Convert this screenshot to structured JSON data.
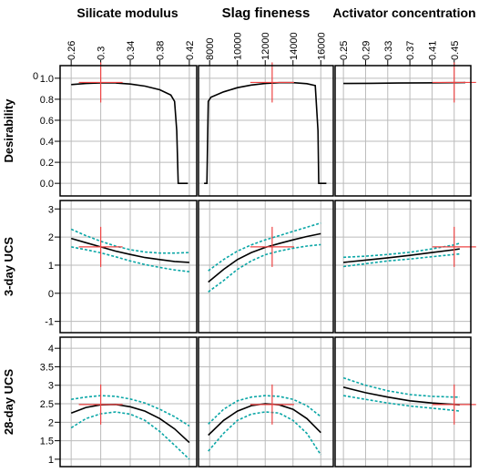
{
  "chart_data": {
    "type": "line",
    "columns": [
      {
        "title": "Silicate modulus",
        "xlim": [
          0.245,
          0.43
        ],
        "ticks": [
          0.26,
          0.3,
          0.34,
          0.38,
          0.42
        ],
        "tick_labels": [
          "0.26",
          "0.3",
          "0.34",
          "0.38",
          "0.42"
        ],
        "current": 0.3
      },
      {
        "title": "Slag fineness",
        "xlim": [
          7200,
          16900
        ],
        "ticks": [
          8000,
          10000,
          12000,
          14000,
          16000
        ],
        "tick_labels": [
          "8000",
          "10000",
          "12000",
          "14000",
          "16000"
        ],
        "current": 12500
      },
      {
        "title": "Activator concentration",
        "xlim": [
          0.235,
          0.48
        ],
        "ticks": [
          0.25,
          0.29,
          0.33,
          0.37,
          0.41,
          0.45
        ],
        "tick_labels": [
          "0.25",
          "0.29",
          "0.33",
          "0.37",
          "0.41",
          "0.45"
        ],
        "current": 0.45
      }
    ],
    "rows": [
      {
        "title": "Desirability",
        "ylim": [
          -0.12,
          1.12
        ],
        "ticks": [
          0,
          0.2,
          0.4,
          0.6,
          0.8,
          1.0
        ],
        "tick_labels": [
          "0.0",
          "0.2",
          "0.4",
          "0.6",
          "0.8",
          "1.0"
        ],
        "top_tick_label": "0",
        "current": 0.96,
        "panels": [
          {
            "fit": [
              [
                0.26,
                0.94
              ],
              [
                0.28,
                0.95
              ],
              [
                0.3,
                0.955
              ],
              [
                0.32,
                0.955
              ],
              [
                0.34,
                0.945
              ],
              [
                0.36,
                0.925
              ],
              [
                0.38,
                0.89
              ],
              [
                0.395,
                0.84
              ],
              [
                0.4,
                0.78
              ],
              [
                0.403,
                0.5
              ],
              [
                0.405,
                0.0
              ],
              [
                0.418,
                0.0
              ]
            ],
            "lower": [],
            "upper": []
          },
          {
            "fit": [
              [
                7600,
                0.0
              ],
              [
                7800,
                0.0
              ],
              [
                7900,
                0.78
              ],
              [
                8100,
                0.82
              ],
              [
                9000,
                0.87
              ],
              [
                10000,
                0.91
              ],
              [
                11000,
                0.935
              ],
              [
                12000,
                0.95
              ],
              [
                13000,
                0.958
              ],
              [
                14000,
                0.958
              ],
              [
                15000,
                0.948
              ],
              [
                15600,
                0.93
              ],
              [
                15800,
                0.5
              ],
              [
                15850,
                0.0
              ],
              [
                16400,
                0.0
              ]
            ],
            "lower": [],
            "upper": []
          },
          {
            "fit": [
              [
                0.25,
                0.95
              ],
              [
                0.3,
                0.952
              ],
              [
                0.35,
                0.954
              ],
              [
                0.4,
                0.956
              ],
              [
                0.45,
                0.958
              ],
              [
                0.47,
                0.959
              ]
            ],
            "lower": [],
            "upper": []
          }
        ]
      },
      {
        "title": "3-day UCS",
        "ylim": [
          -1.4,
          3.3
        ],
        "ticks": [
          -1,
          0,
          1,
          2,
          3
        ],
        "tick_labels": [
          "-1",
          "0",
          "1",
          "2",
          "3"
        ],
        "current": 1.65,
        "panels": [
          {
            "fit": [
              [
                0.26,
                1.95
              ],
              [
                0.28,
                1.8
              ],
              [
                0.3,
                1.65
              ],
              [
                0.32,
                1.5
              ],
              [
                0.34,
                1.38
              ],
              [
                0.36,
                1.27
              ],
              [
                0.38,
                1.2
              ],
              [
                0.4,
                1.13
              ],
              [
                0.42,
                1.1
              ]
            ],
            "lower": [
              [
                0.26,
                1.65
              ],
              [
                0.28,
                1.55
              ],
              [
                0.3,
                1.44
              ],
              [
                0.32,
                1.3
              ],
              [
                0.34,
                1.15
              ],
              [
                0.36,
                1.02
              ],
              [
                0.38,
                0.92
              ],
              [
                0.4,
                0.83
              ],
              [
                0.42,
                0.77
              ]
            ],
            "upper": [
              [
                0.26,
                2.28
              ],
              [
                0.28,
                2.05
              ],
              [
                0.3,
                1.85
              ],
              [
                0.32,
                1.68
              ],
              [
                0.34,
                1.55
              ],
              [
                0.36,
                1.47
              ],
              [
                0.38,
                1.43
              ],
              [
                0.4,
                1.43
              ],
              [
                0.42,
                1.45
              ]
            ]
          },
          {
            "fit": [
              [
                7900,
                0.4
              ],
              [
                9000,
                0.85
              ],
              [
                10000,
                1.2
              ],
              [
                11000,
                1.45
              ],
              [
                12000,
                1.63
              ],
              [
                13000,
                1.77
              ],
              [
                14000,
                1.9
              ],
              [
                15000,
                2.02
              ],
              [
                16000,
                2.12
              ]
            ],
            "lower": [
              [
                7900,
                0.05
              ],
              [
                9000,
                0.45
              ],
              [
                10000,
                0.85
              ],
              [
                11000,
                1.15
              ],
              [
                12000,
                1.37
              ],
              [
                13000,
                1.5
              ],
              [
                14000,
                1.6
              ],
              [
                15000,
                1.68
              ],
              [
                16000,
                1.73
              ]
            ],
            "upper": [
              [
                7900,
                0.8
              ],
              [
                9000,
                1.2
              ],
              [
                10000,
                1.5
              ],
              [
                11000,
                1.72
              ],
              [
                12000,
                1.9
              ],
              [
                13000,
                2.05
              ],
              [
                14000,
                2.2
              ],
              [
                15000,
                2.35
              ],
              [
                16000,
                2.5
              ]
            ]
          },
          {
            "fit": [
              [
                0.25,
                1.1
              ],
              [
                0.29,
                1.18
              ],
              [
                0.33,
                1.26
              ],
              [
                0.37,
                1.35
              ],
              [
                0.41,
                1.45
              ],
              [
                0.45,
                1.55
              ],
              [
                0.46,
                1.58
              ]
            ],
            "lower": [
              [
                0.25,
                0.95
              ],
              [
                0.29,
                1.05
              ],
              [
                0.33,
                1.15
              ],
              [
                0.37,
                1.22
              ],
              [
                0.41,
                1.3
              ],
              [
                0.45,
                1.38
              ],
              [
                0.46,
                1.4
              ]
            ],
            "upper": [
              [
                0.25,
                1.28
              ],
              [
                0.29,
                1.32
              ],
              [
                0.33,
                1.38
              ],
              [
                0.37,
                1.46
              ],
              [
                0.41,
                1.58
              ],
              [
                0.45,
                1.72
              ],
              [
                0.46,
                1.78
              ]
            ]
          }
        ]
      },
      {
        "title": "28-day UCS",
        "ylim": [
          0.8,
          4.3
        ],
        "ticks": [
          1,
          1.5,
          2,
          2.5,
          3,
          3.5,
          4
        ],
        "tick_labels": [
          "1",
          "1.5",
          "2",
          "2.5",
          "3",
          "3.5",
          "4"
        ],
        "current": 2.48,
        "panels": [
          {
            "fit": [
              [
                0.26,
                2.25
              ],
              [
                0.28,
                2.4
              ],
              [
                0.3,
                2.47
              ],
              [
                0.32,
                2.48
              ],
              [
                0.34,
                2.42
              ],
              [
                0.36,
                2.3
              ],
              [
                0.38,
                2.1
              ],
              [
                0.4,
                1.82
              ],
              [
                0.42,
                1.45
              ]
            ],
            "lower": [
              [
                0.26,
                1.85
              ],
              [
                0.28,
                2.1
              ],
              [
                0.3,
                2.23
              ],
              [
                0.32,
                2.28
              ],
              [
                0.34,
                2.22
              ],
              [
                0.36,
                2.05
              ],
              [
                0.38,
                1.75
              ],
              [
                0.4,
                1.38
              ],
              [
                0.42,
                1.0
              ]
            ],
            "upper": [
              [
                0.26,
                2.62
              ],
              [
                0.28,
                2.68
              ],
              [
                0.3,
                2.72
              ],
              [
                0.32,
                2.7
              ],
              [
                0.34,
                2.63
              ],
              [
                0.36,
                2.52
              ],
              [
                0.38,
                2.35
              ],
              [
                0.4,
                2.15
              ],
              [
                0.42,
                1.9
              ]
            ]
          },
          {
            "fit": [
              [
                7900,
                1.65
              ],
              [
                9000,
                2.05
              ],
              [
                10000,
                2.3
              ],
              [
                11000,
                2.45
              ],
              [
                12000,
                2.5
              ],
              [
                13000,
                2.47
              ],
              [
                14000,
                2.35
              ],
              [
                15000,
                2.1
              ],
              [
                16000,
                1.72
              ]
            ],
            "lower": [
              [
                7900,
                1.22
              ],
              [
                9000,
                1.7
              ],
              [
                10000,
                2.05
              ],
              [
                11000,
                2.22
              ],
              [
                12000,
                2.28
              ],
              [
                13000,
                2.25
              ],
              [
                14000,
                2.05
              ],
              [
                15000,
                1.7
              ],
              [
                16000,
                1.12
              ]
            ],
            "upper": [
              [
                7900,
                1.95
              ],
              [
                9000,
                2.35
              ],
              [
                10000,
                2.58
              ],
              [
                11000,
                2.68
              ],
              [
                12000,
                2.72
              ],
              [
                13000,
                2.7
              ],
              [
                14000,
                2.62
              ],
              [
                15000,
                2.45
              ],
              [
                16000,
                2.15
              ]
            ]
          },
          {
            "fit": [
              [
                0.25,
                2.95
              ],
              [
                0.29,
                2.8
              ],
              [
                0.33,
                2.68
              ],
              [
                0.37,
                2.58
              ],
              [
                0.41,
                2.52
              ],
              [
                0.45,
                2.48
              ],
              [
                0.46,
                2.47
              ]
            ],
            "lower": [
              [
                0.25,
                2.72
              ],
              [
                0.29,
                2.62
              ],
              [
                0.33,
                2.52
              ],
              [
                0.37,
                2.44
              ],
              [
                0.41,
                2.38
              ],
              [
                0.45,
                2.32
              ],
              [
                0.46,
                2.3
              ]
            ],
            "upper": [
              [
                0.25,
                3.2
              ],
              [
                0.29,
                3.0
              ],
              [
                0.33,
                2.85
              ],
              [
                0.37,
                2.75
              ],
              [
                0.41,
                2.7
              ],
              [
                0.45,
                2.68
              ],
              [
                0.46,
                2.68
              ]
            ]
          }
        ]
      }
    ],
    "grid": true,
    "colors": {
      "fit": "#000000",
      "interval": "#0aa6a6",
      "crosshair": "#ee4444",
      "grid": "#bbbbbb",
      "frame": "#000000"
    }
  }
}
